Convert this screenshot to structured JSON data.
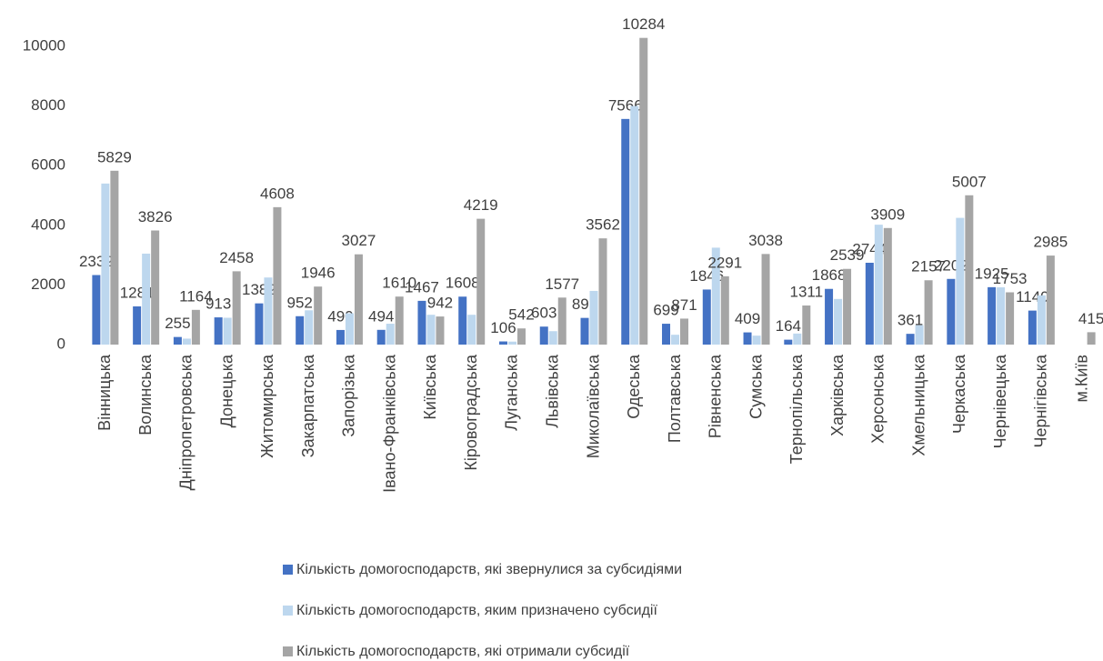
{
  "chart_data": {
    "type": "bar",
    "categories": [
      "Вінницька",
      "Волинська",
      "Дніпропетровська",
      "Донецька",
      "Житомирська",
      "Закарпатська",
      "Запорізька",
      "Івано-Франківська",
      "Київська",
      "Кіровоградська",
      "Луганська",
      "Львівська",
      "Миколаївська",
      "Одеська",
      "Полтавська",
      "Рівненська",
      "Сумська",
      "Тернопільська",
      "Харківська",
      "Херсонська",
      "Хмельницька",
      "Черкаська",
      "Чернівецька",
      "Чернігівська",
      "м.Київ"
    ],
    "series": [
      {
        "name": "Кількість домогосподарств, які звернулися  за субсидіями",
        "color": "#4472c4",
        "show_labels": true,
        "values": [
          2332,
          1281,
          255,
          913,
          1382,
          952,
          490,
          494,
          1467,
          1608,
          106,
          603,
          895,
          7566,
          699,
          1846,
          409,
          164,
          1868,
          2744,
          361,
          2202,
          1925,
          1140,
          null
        ]
      },
      {
        "name": "Кількість домогосподарств, яким призначено субсидії",
        "color": "#bdd7ee",
        "show_labels": false,
        "values": [
          5400,
          3050,
          200,
          900,
          2250,
          1150,
          1050,
          700,
          1000,
          1000,
          100,
          450,
          1800,
          8000,
          330,
          3250,
          300,
          370,
          1530,
          4020,
          650,
          4250,
          1920,
          1650,
          null
        ]
      },
      {
        "name": "Кількість домогосподарств, які отримали субсидії",
        "color": "#a5a5a5",
        "show_labels": true,
        "values": [
          5829,
          3826,
          1164,
          2458,
          4608,
          1946,
          3027,
          1610,
          942,
          4219,
          542,
          1577,
          3562,
          10284,
          871,
          2291,
          3038,
          1311,
          2539,
          3909,
          2157,
          5007,
          1753,
          2985,
          415
        ]
      }
    ],
    "ylim": [
      0,
      10000
    ],
    "yticks": [
      0,
      2000,
      4000,
      6000,
      8000,
      10000
    ],
    "grid": false,
    "legend": "bottom"
  }
}
